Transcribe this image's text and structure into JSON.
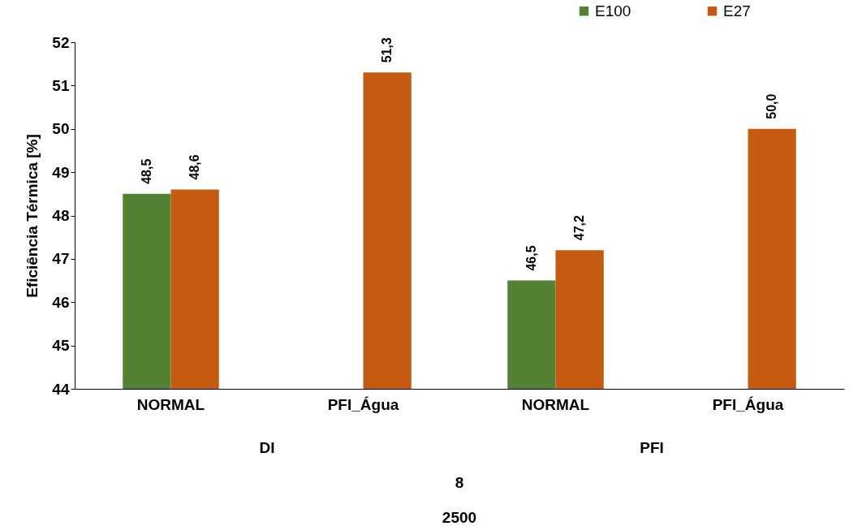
{
  "chart_data": {
    "type": "bar",
    "ylabel": "Eficiência Térmica [%]",
    "categories": [
      "NORMAL",
      "PFI_Água",
      "NORMAL",
      "PFI_Água"
    ],
    "series": [
      {
        "name": "E100",
        "color": "#548235",
        "values": [
          48.5,
          null,
          46.5,
          null
        ],
        "value_labels": [
          "48,5",
          null,
          "46,5",
          null
        ]
      },
      {
        "name": "E27",
        "color": "#c55a11",
        "values": [
          48.6,
          51.3,
          47.2,
          50.0
        ],
        "value_labels": [
          "48,6",
          "51,3",
          "47,2",
          "50,0"
        ]
      }
    ],
    "ylim": [
      44,
      52
    ],
    "yticks": [
      44,
      45,
      46,
      47,
      48,
      49,
      50,
      51,
      52
    ],
    "grid": false,
    "legend": "top right",
    "annotations": [
      "DI",
      "PFI",
      "8",
      "2500"
    ]
  }
}
